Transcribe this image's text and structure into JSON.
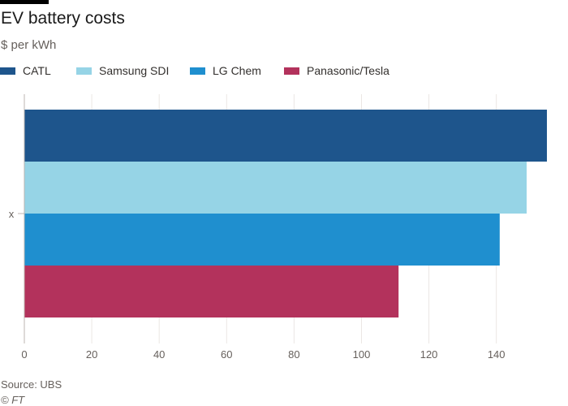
{
  "header": {
    "title": "EV battery costs",
    "subtitle": "$ per kWh"
  },
  "footer": {
    "source": "Source: UBS",
    "copyright": "© FT"
  },
  "chart_data": {
    "type": "bar",
    "orientation": "horizontal",
    "categories": [
      "x"
    ],
    "series": [
      {
        "name": "CATL",
        "values": [
          155
        ],
        "color": "#1e558c"
      },
      {
        "name": "Samsung SDI",
        "values": [
          149
        ],
        "color": "#96d4e6"
      },
      {
        "name": "LG Chem",
        "values": [
          141
        ],
        "color": "#1f8fcf"
      },
      {
        "name": "Panasonic/Tesla",
        "values": [
          111
        ],
        "color": "#b3325c"
      }
    ],
    "title": "EV battery costs",
    "subtitle": "$ per kWh",
    "xlabel": "",
    "ylabel": "",
    "xlim": [
      0,
      155
    ],
    "xticks": [
      0,
      20,
      40,
      60,
      80,
      100,
      120,
      140
    ],
    "grid": true,
    "legend_position": "top-left"
  }
}
